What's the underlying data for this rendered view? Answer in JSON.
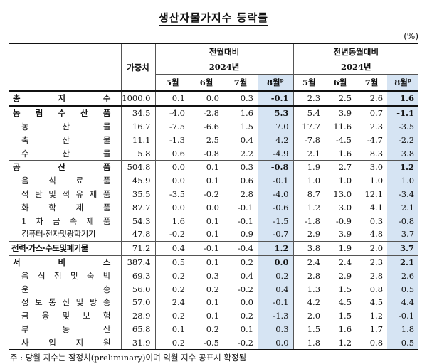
{
  "title": "생산자물가지수 등락률",
  "unit": "(%)",
  "header": {
    "weight": "가중치",
    "mom": "전월대비",
    "yoy": "전년동월대비",
    "year": "2024년",
    "months": [
      "5월",
      "6월",
      "7월",
      "8월"
    ],
    "prelim_mark": "p"
  },
  "rows": [
    {
      "label": "총 지 수",
      "weight": "1000.0",
      "mom": [
        "0.1",
        "0.0",
        "0.3",
        "-0.1"
      ],
      "yoy": [
        "2.3",
        "2.5",
        "2.6",
        "1.6"
      ],
      "level": "top"
    },
    {
      "label": "농 림 수 산 품",
      "weight": "34.5",
      "mom": [
        "-4.0",
        "-2.8",
        "1.6",
        "5.3"
      ],
      "yoy": [
        "5.4",
        "3.9",
        "0.7",
        "-1.1"
      ],
      "level": "group"
    },
    {
      "label": "농 산 물",
      "weight": "16.7",
      "mom": [
        "-7.5",
        "-6.6",
        "1.5",
        "7.0"
      ],
      "yoy": [
        "17.7",
        "11.6",
        "2.3",
        "-3.5"
      ],
      "level": "sub"
    },
    {
      "label": "축 산 물",
      "weight": "11.1",
      "mom": [
        "-1.3",
        "2.5",
        "0.4",
        "4.2"
      ],
      "yoy": [
        "-7.8",
        "-4.5",
        "-4.7",
        "-2.2"
      ],
      "level": "sub"
    },
    {
      "label": "수 산 물",
      "weight": "5.8",
      "mom": [
        "0.6",
        "-0.8",
        "2.2",
        "-4.9"
      ],
      "yoy": [
        "2.1",
        "1.6",
        "8.3",
        "3.8"
      ],
      "level": "sub"
    },
    {
      "label": "공 산 품",
      "weight": "504.8",
      "mom": [
        "0.0",
        "0.1",
        "0.3",
        "-0.8"
      ],
      "yoy": [
        "1.9",
        "2.7",
        "3.0",
        "1.2"
      ],
      "level": "group"
    },
    {
      "label": "음 식 료 품",
      "weight": "45.9",
      "mom": [
        "0.0",
        "0.1",
        "0.6",
        "-0.1"
      ],
      "yoy": [
        "1.0",
        "1.0",
        "1.0",
        "1.0"
      ],
      "level": "sub"
    },
    {
      "label": "석 탄 및 석 유 제 품",
      "weight": "35.5",
      "mom": [
        "-3.5",
        "-0.2",
        "2.8",
        "-4.0"
      ],
      "yoy": [
        "8.7",
        "13.0",
        "12.1",
        "-3.4"
      ],
      "level": "sub"
    },
    {
      "label": "화 학 제 품",
      "weight": "87.7",
      "mom": [
        "0.0",
        "0.0",
        "-0.1",
        "-0.6"
      ],
      "yoy": [
        "1.2",
        "3.0",
        "4.1",
        "2.1"
      ],
      "level": "sub"
    },
    {
      "label": "1 차 금 속 제 품",
      "weight": "54.3",
      "mom": [
        "1.6",
        "0.1",
        "-0.1",
        "-1.5"
      ],
      "yoy": [
        "-1.8",
        "-0.9",
        "0.3",
        "-0.8"
      ],
      "level": "sub"
    },
    {
      "label": "컴퓨터·전자및광학기기",
      "weight": "47.8",
      "mom": [
        "-0.2",
        "0.1",
        "0.9",
        "-0.7"
      ],
      "yoy": [
        "2.9",
        "3.9",
        "4.8",
        "3.7"
      ],
      "level": "sub-nj"
    },
    {
      "label": "전력·가스·수도및폐기물",
      "weight": "71.2",
      "mom": [
        "0.4",
        "-0.1",
        "-0.4",
        "1.2"
      ],
      "yoy": [
        "3.8",
        "1.9",
        "2.0",
        "3.7"
      ],
      "level": "group-nj"
    },
    {
      "label": "서 비 스",
      "weight": "387.4",
      "mom": [
        "0.5",
        "0.1",
        "0.2",
        "0.0"
      ],
      "yoy": [
        "2.4",
        "2.4",
        "2.3",
        "2.1"
      ],
      "level": "group"
    },
    {
      "label": "음 식 점 및 숙 박",
      "weight": "69.3",
      "mom": [
        "0.2",
        "0.3",
        "0.4",
        "0.2"
      ],
      "yoy": [
        "2.8",
        "2.9",
        "2.8",
        "2.6"
      ],
      "level": "sub"
    },
    {
      "label": "운 송",
      "weight": "56.0",
      "mom": [
        "0.2",
        "0.2",
        "-0.2",
        "0.4"
      ],
      "yoy": [
        "1.3",
        "1.5",
        "0.8",
        "0.5"
      ],
      "level": "sub"
    },
    {
      "label": "정 보 통 신 및 방 송",
      "weight": "57.0",
      "mom": [
        "2.4",
        "0.1",
        "0.0",
        "-0.1"
      ],
      "yoy": [
        "4.2",
        "4.5",
        "4.5",
        "4.4"
      ],
      "level": "sub"
    },
    {
      "label": "금 융 및 보 험",
      "weight": "28.9",
      "mom": [
        "0.2",
        "0.1",
        "0.2",
        "-1.3"
      ],
      "yoy": [
        "2.0",
        "1.5",
        "1.2",
        "-0.1"
      ],
      "level": "sub"
    },
    {
      "label": "부 동 산",
      "weight": "65.8",
      "mom": [
        "0.1",
        "0.2",
        "0.1",
        "0.3"
      ],
      "yoy": [
        "1.5",
        "1.6",
        "1.7",
        "1.8"
      ],
      "level": "sub"
    },
    {
      "label": "사 업 지 원",
      "weight": "31.9",
      "mom": [
        "0.2",
        "-0.5",
        "-0.2",
        "0.0"
      ],
      "yoy": [
        "1.8",
        "1.2",
        "0.8",
        "0.5"
      ],
      "level": "sub-last"
    }
  ],
  "footnote": "주 : 당월 지수는 잠정치(preliminary)이며 익월 지수 공표시 확정됨"
}
